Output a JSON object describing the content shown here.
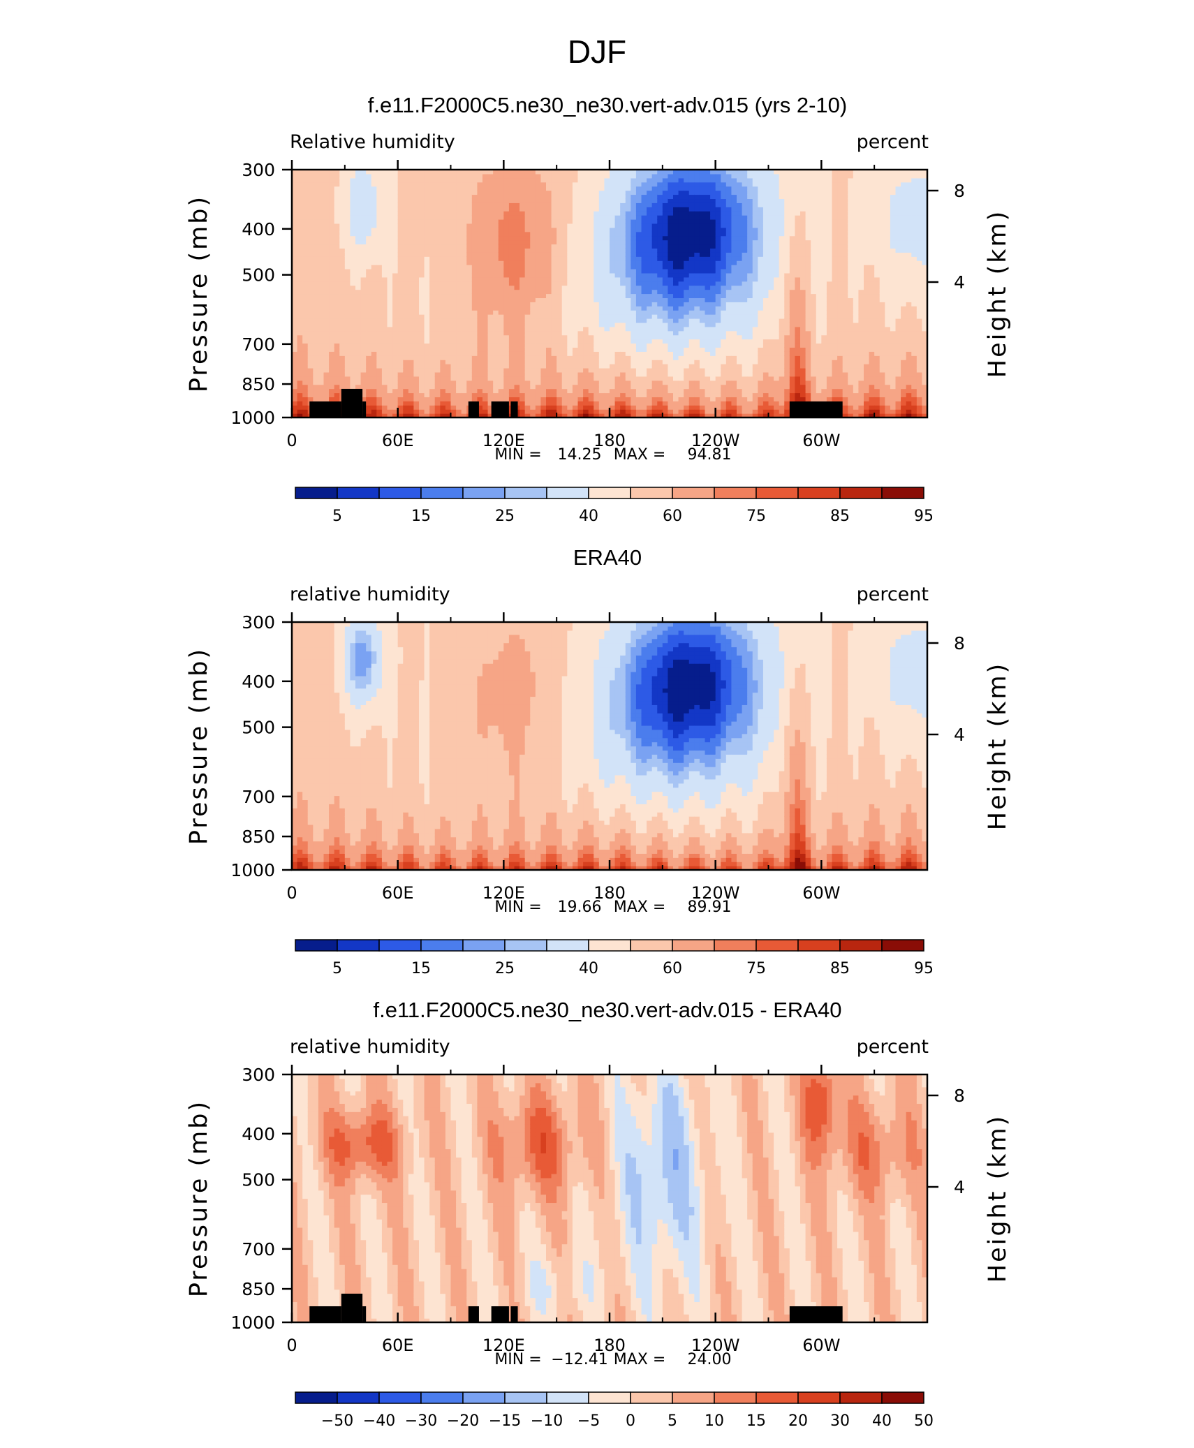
{
  "page_title": "DJF",
  "chart_data": [
    {
      "type": "heatmap",
      "title": "f.e11.F2000C5.ne30_ne30.vert-adv.015 (yrs 2-10)",
      "left_label": "Relative humidity",
      "right_label": "percent",
      "ylabel": "Pressure (mb)",
      "ylabel_right": "Height (km)",
      "x_ticks": [
        "0",
        "60E",
        "120E",
        "180",
        "120W",
        "60W"
      ],
      "y_ticks": [
        "300",
        "400",
        "500",
        "700",
        "850",
        "1000"
      ],
      "y_right_ticks": [
        "8",
        "4"
      ],
      "stats": {
        "min_label": "MIN =",
        "min": "14.25",
        "max_label": "MAX =",
        "max": "94.81"
      },
      "colorbar_labels": [
        "5",
        "15",
        "25",
        "40",
        "60",
        "75",
        "85",
        "95"
      ],
      "colorbar_colors": [
        "#061d8c",
        "#1337c6",
        "#2d5ae6",
        "#4b7ded",
        "#7aa2f2",
        "#a7c4f4",
        "#d2e3f8",
        "#fde4d2",
        "#fbc7ac",
        "#f6a586",
        "#f07f5c",
        "#e85a36",
        "#d8401f",
        "#b9260f",
        "#8a0d06"
      ],
      "land_mask": true,
      "pattern": "model"
    },
    {
      "type": "heatmap",
      "title": "ERA40",
      "left_label": "relative humidity",
      "right_label": "percent",
      "ylabel": "Pressure (mb)",
      "ylabel_right": "Height (km)",
      "x_ticks": [
        "0",
        "60E",
        "120E",
        "180",
        "120W",
        "60W"
      ],
      "y_ticks": [
        "300",
        "400",
        "500",
        "700",
        "850",
        "1000"
      ],
      "y_right_ticks": [
        "8",
        "4"
      ],
      "stats": {
        "min_label": "MIN =",
        "min": "19.66",
        "max_label": "MAX =",
        "max": "89.91"
      },
      "colorbar_labels": [
        "5",
        "15",
        "25",
        "40",
        "60",
        "75",
        "85",
        "95"
      ],
      "colorbar_colors": [
        "#061d8c",
        "#1337c6",
        "#2d5ae6",
        "#4b7ded",
        "#7aa2f2",
        "#a7c4f4",
        "#d2e3f8",
        "#fde4d2",
        "#fbc7ac",
        "#f6a586",
        "#f07f5c",
        "#e85a36",
        "#d8401f",
        "#b9260f",
        "#8a0d06"
      ],
      "land_mask": false,
      "pattern": "obs"
    },
    {
      "type": "heatmap",
      "title": "f.e11.F2000C5.ne30_ne30.vert-adv.015 - ERA40",
      "left_label": "relative humidity",
      "right_label": "percent",
      "ylabel": "Pressure (mb)",
      "ylabel_right": "Height (km)",
      "x_ticks": [
        "0",
        "60E",
        "120E",
        "180",
        "120W",
        "60W"
      ],
      "y_ticks": [
        "300",
        "400",
        "500",
        "700",
        "850",
        "1000"
      ],
      "y_right_ticks": [
        "8",
        "4"
      ],
      "stats": {
        "min_label": "MIN =",
        "min": "−12.41",
        "max_label": "MAX =",
        "max": "24.00"
      },
      "colorbar_labels": [
        "−50",
        "−40",
        "−30",
        "−20",
        "−15",
        "−10",
        "−5",
        "0",
        "5",
        "10",
        "15",
        "20",
        "30",
        "40",
        "50"
      ],
      "colorbar_colors": [
        "#061d8c",
        "#1337c6",
        "#2d5ae6",
        "#4b7ded",
        "#7aa2f2",
        "#a7c4f4",
        "#d2e3f8",
        "#fde4d2",
        "#fbc7ac",
        "#f6a586",
        "#f07f5c",
        "#e85a36",
        "#d8401f",
        "#b9260f",
        "#8a0d06"
      ],
      "land_mask": true,
      "pattern": "diff"
    }
  ]
}
